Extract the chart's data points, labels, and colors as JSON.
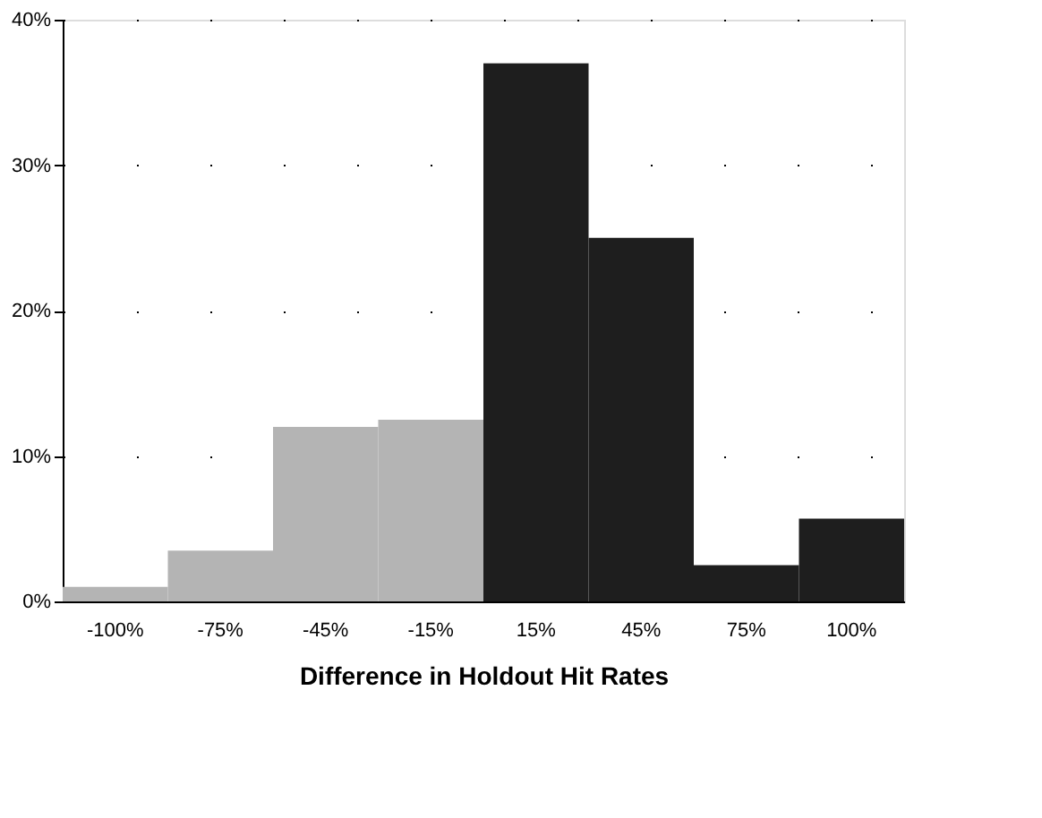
{
  "chart_data": {
    "type": "bar",
    "xlabel": "Difference in Holdout Hit Rates",
    "categories": [
      "-100%",
      "-75%",
      "-45%",
      "-15%",
      "15%",
      "45%",
      "75%",
      "100%"
    ],
    "values": [
      1,
      3.5,
      12,
      12.5,
      37,
      25,
      2.5,
      5.7
    ],
    "colors": [
      "#b4b4b4",
      "#b4b4b4",
      "#b4b4b4",
      "#b4b4b4",
      "#1e1e1e",
      "#1e1e1e",
      "#1e1e1e",
      "#1e1e1e"
    ],
    "ylim": [
      0,
      40
    ],
    "yticks": [
      {
        "value": 0,
        "label": "0%"
      },
      {
        "value": 10,
        "label": "10%"
      },
      {
        "value": 20,
        "label": "20%"
      },
      {
        "value": 30,
        "label": "30%"
      },
      {
        "value": 40,
        "label": "40%"
      }
    ],
    "grid": "y"
  }
}
